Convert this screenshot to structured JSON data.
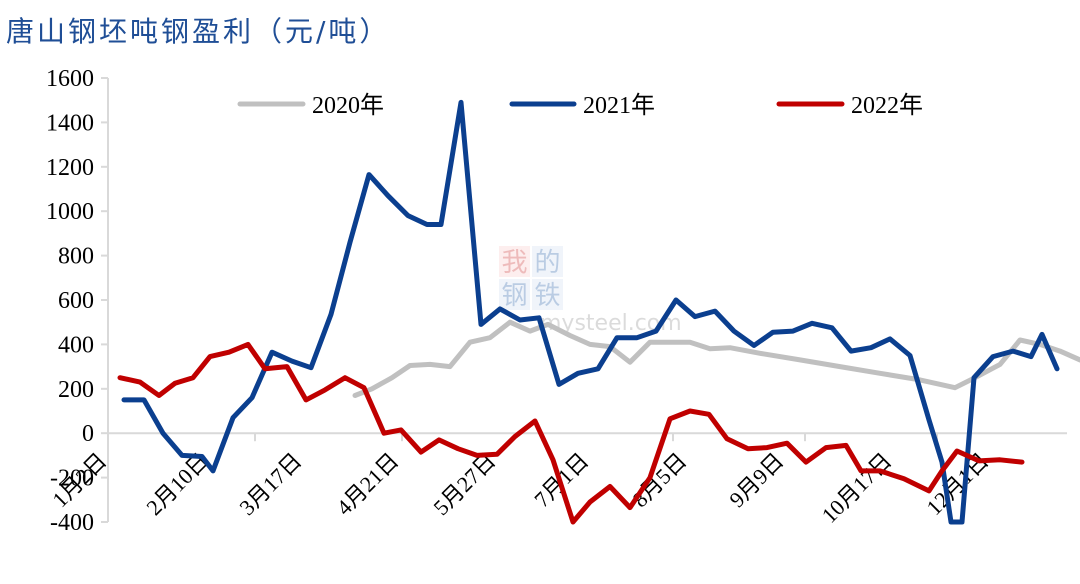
{
  "title": "唐山钢坯吨钢盈利（元/吨）",
  "watermark": {
    "line1": [
      "我",
      "的"
    ],
    "line2": [
      "钢",
      "铁"
    ],
    "domain": "mysteel.com"
  },
  "colors": {
    "s2020": "#c0c0c0",
    "s2021": "#0b3f8f",
    "s2022": "#c00000",
    "title": "#1f4e96",
    "axis": "#d9d9d9"
  },
  "chart_data": {
    "type": "line",
    "title": "唐山钢坯吨钢盈利（元/吨）",
    "xlabel": "",
    "ylabel": "元/吨",
    "ylim": [
      -400,
      1600
    ],
    "yticks": [
      1600,
      1400,
      1200,
      1000,
      800,
      600,
      400,
      200,
      0,
      -200,
      -400
    ],
    "xtick_labels": [
      "1月2日",
      "2月10日",
      "3月17日",
      "4月21日",
      "5月27日",
      "7月1日",
      "8月5日",
      "9月9日",
      "10月17日",
      "12月1日"
    ],
    "legend": [
      "2020年",
      "2021年",
      "2022年"
    ],
    "legend_position": "top",
    "grid": false,
    "series": [
      {
        "name": "2020年",
        "color": "#c0c0c0",
        "points": [
          [
            355,
            170
          ],
          [
            372,
            200
          ],
          [
            392,
            250
          ],
          [
            410,
            305
          ],
          [
            430,
            310
          ],
          [
            450,
            300
          ],
          [
            470,
            410
          ],
          [
            490,
            430
          ],
          [
            510,
            500
          ],
          [
            530,
            460
          ],
          [
            548,
            490
          ],
          [
            570,
            440
          ],
          [
            590,
            400
          ],
          [
            610,
            390
          ],
          [
            630,
            320
          ],
          [
            650,
            410
          ],
          [
            670,
            410
          ],
          [
            690,
            410
          ],
          [
            710,
            380
          ],
          [
            730,
            385
          ],
          [
            760,
            360
          ],
          [
            800,
            330
          ],
          [
            840,
            300
          ],
          [
            880,
            270
          ],
          [
            920,
            240
          ],
          [
            955,
            205
          ],
          [
            975,
            250
          ],
          [
            1000,
            310
          ],
          [
            1020,
            420
          ],
          [
            1040,
            400
          ],
          [
            1060,
            370
          ],
          [
            1080,
            330
          ],
          [
            1100,
            295
          ],
          [
            1110,
            380
          ],
          [
            1126,
            150
          ]
        ]
      },
      {
        "name": "2021年",
        "color": "#0b3f8f",
        "points": [
          [
            124,
            150
          ],
          [
            144,
            150
          ],
          [
            163,
            0
          ],
          [
            182,
            -100
          ],
          [
            202,
            -105
          ],
          [
            213,
            -170
          ],
          [
            233,
            70
          ],
          [
            252,
            160
          ],
          [
            272,
            365
          ],
          [
            292,
            325
          ],
          [
            311,
            295
          ],
          [
            331,
            535
          ],
          [
            350,
            860
          ],
          [
            369,
            1165
          ],
          [
            388,
            1070
          ],
          [
            408,
            980
          ],
          [
            427,
            940
          ],
          [
            441,
            940
          ],
          [
            461,
            1490
          ],
          [
            481,
            490
          ],
          [
            500,
            560
          ],
          [
            520,
            510
          ],
          [
            539,
            520
          ],
          [
            559,
            220
          ],
          [
            578,
            270
          ],
          [
            598,
            290
          ],
          [
            617,
            430
          ],
          [
            637,
            430
          ],
          [
            656,
            460
          ],
          [
            676,
            600
          ],
          [
            695,
            525
          ],
          [
            715,
            550
          ],
          [
            734,
            460
          ],
          [
            754,
            395
          ],
          [
            773,
            455
          ],
          [
            793,
            460
          ],
          [
            812,
            495
          ],
          [
            832,
            475
          ],
          [
            851,
            370
          ],
          [
            871,
            385
          ],
          [
            890,
            425
          ],
          [
            910,
            350
          ],
          [
            929,
            60
          ],
          [
            942,
            -130
          ],
          [
            951,
            -400
          ],
          [
            962,
            -400
          ],
          [
            974,
            250
          ],
          [
            993,
            345
          ],
          [
            1013,
            370
          ],
          [
            1031,
            345
          ],
          [
            1042,
            445
          ],
          [
            1057,
            290
          ]
        ]
      },
      {
        "name": "2022年",
        "color": "#c00000",
        "points": [
          [
            120,
            250
          ],
          [
            140,
            230
          ],
          [
            159,
            170
          ],
          [
            175,
            225
          ],
          [
            193,
            250
          ],
          [
            210,
            345
          ],
          [
            229,
            365
          ],
          [
            248,
            400
          ],
          [
            265,
            290
          ],
          [
            287,
            300
          ],
          [
            306,
            150
          ],
          [
            325,
            195
          ],
          [
            345,
            250
          ],
          [
            364,
            205
          ],
          [
            384,
            0
          ],
          [
            401,
            15
          ],
          [
            421,
            -85
          ],
          [
            439,
            -30
          ],
          [
            458,
            -70
          ],
          [
            477,
            -100
          ],
          [
            497,
            -95
          ],
          [
            515,
            -15
          ],
          [
            535,
            55
          ],
          [
            553,
            -120
          ],
          [
            573,
            -400
          ],
          [
            590,
            -310
          ],
          [
            610,
            -240
          ],
          [
            630,
            -335
          ],
          [
            650,
            -200
          ],
          [
            670,
            65
          ],
          [
            690,
            100
          ],
          [
            709,
            85
          ],
          [
            727,
            -25
          ],
          [
            748,
            -70
          ],
          [
            767,
            -65
          ],
          [
            787,
            -45
          ],
          [
            806,
            -130
          ],
          [
            826,
            -65
          ],
          [
            846,
            -55
          ],
          [
            861,
            -170
          ],
          [
            880,
            -170
          ],
          [
            904,
            -205
          ],
          [
            929,
            -260
          ],
          [
            942,
            -170
          ],
          [
            957,
            -80
          ],
          [
            979,
            -125
          ],
          [
            1000,
            -120
          ],
          [
            1022,
            -130
          ]
        ]
      }
    ]
  }
}
